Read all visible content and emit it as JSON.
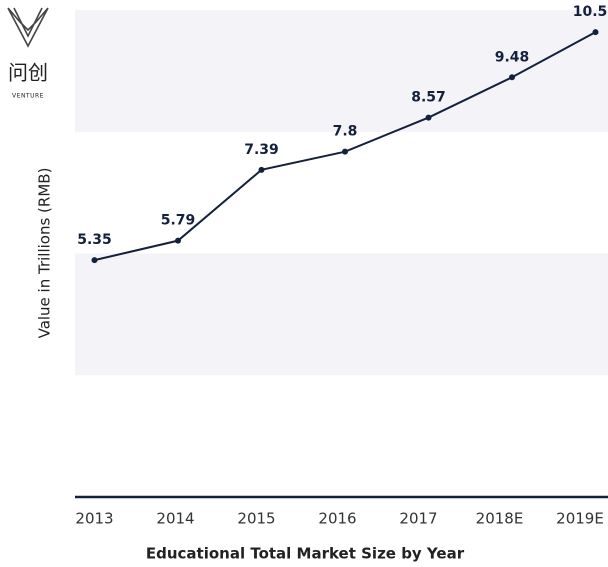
{
  "logo": {
    "name": "问创",
    "subtitle": "VENTURE"
  },
  "chart_data": {
    "type": "line",
    "title": "Educational Total Market Size by Year",
    "y_label": "Value in Trillions (RMB)",
    "categories": [
      "2013",
      "2014",
      "2015",
      "2016",
      "2017",
      "2018E",
      "2019E"
    ],
    "values": [
      5.35,
      5.79,
      7.39,
      7.8,
      8.57,
      9.48,
      10.5
    ],
    "color": "#14213d",
    "band_color": "#f3f3f8",
    "ylim": [
      0,
      11
    ],
    "yticks": [
      0,
      2.75,
      5.5,
      8.25,
      11
    ],
    "grid": "bands"
  }
}
